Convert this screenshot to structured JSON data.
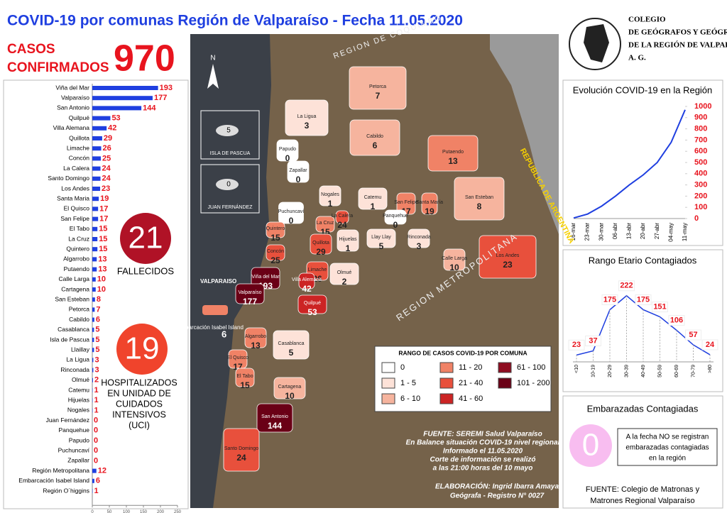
{
  "header": {
    "title": "COVID-19 por comunas Región de Valparaíso - Fecha 11.05.2020",
    "cases_label_1": "CASOS",
    "cases_label_2": "CONFIRMADOS",
    "cases_total": "970"
  },
  "logo": {
    "lines": [
      "COLEGIO",
      "DE GEÓGRAFOS Y GEÓGRAFAS",
      "DE LA REGIÓN DE VALPARAÍSO",
      "A. G."
    ]
  },
  "deaths": {
    "value": "21",
    "label": "FALLECIDOS"
  },
  "icu": {
    "value": "19",
    "lines": [
      "HOSPITALIZADOS",
      "EN UNIDAD DE",
      "CUIDADOS",
      "INTENSIVOS",
      "(UCI)"
    ]
  },
  "pregnant": {
    "title": "Embarazadas Contagiadas",
    "value": "0",
    "lines": [
      "A la fecha NO se registran",
      "embarazadas contagiadas",
      "en la región"
    ],
    "source": [
      "FUENTE: Colegio de Matronas y",
      "Matrones Regional Valparaíso"
    ]
  },
  "chart_data": [
    {
      "type": "bar",
      "orientation": "horizontal",
      "color": "#1f3fe0",
      "label_color": "#e8141e",
      "categories": [
        "Viña del Mar",
        "Valparaíso",
        "San Antonio",
        "Quilpué",
        "Villa Alemana",
        "Quillota",
        "Limache",
        "Concón",
        "La Calera",
        "Santo Domingo",
        "Los Andes",
        "Santa Maria",
        "El Quisco",
        "San Felipe",
        "El Tabo",
        "La Cruz",
        "Quintero",
        "Algarrobo",
        "Putaendo",
        "Calle Larga",
        "Cartagena",
        "San Esteban",
        "Petorca",
        "Cabildo",
        "Casablanca",
        "Isla de Pascua",
        "Llaillay",
        "La Ligua",
        "Rinconada",
        "Olmué",
        "Catemu",
        "Hijuelas",
        "Nogales",
        "Juan Fernández",
        "Panquehue",
        "Papudo",
        "Puchuncaví",
        "Zapallar",
        "Región Metropolitana",
        "Embarcación Isabel Island",
        "Región O´higgins"
      ],
      "values": [
        193,
        177,
        144,
        53,
        42,
        29,
        26,
        25,
        24,
        24,
        23,
        19,
        17,
        17,
        15,
        15,
        15,
        13,
        13,
        10,
        10,
        8,
        7,
        6,
        5,
        5,
        5,
        3,
        3,
        2,
        1,
        1,
        1,
        0,
        0,
        0,
        0,
        0,
        12,
        6,
        1
      ],
      "xlim": [
        0,
        250
      ],
      "xticks": [
        0,
        50,
        100,
        150,
        200,
        250
      ]
    },
    {
      "type": "line",
      "title": "Evolución COVID-19 en la Región",
      "color": "#1f3fe0",
      "categories": [
        "16-mar",
        "23-mar",
        "30-mar",
        "06-abr",
        "13-abr",
        "20-abr",
        "27-abr",
        "04-may",
        "11-may"
      ],
      "values": [
        5,
        40,
        110,
        200,
        300,
        390,
        500,
        680,
        970
      ],
      "ylim": [
        0,
        1000
      ],
      "yticks": [
        0,
        100,
        200,
        300,
        400,
        500,
        600,
        700,
        800,
        900,
        1000
      ],
      "y_axis_side": "right"
    },
    {
      "type": "line",
      "title": "Rango Etario Contagiados",
      "color": "#1f3fe0",
      "label_color": "#e8141e",
      "categories": [
        "<10",
        "10-19",
        "20-29",
        "30-39",
        "40-49",
        "50-59",
        "60-69",
        "70-79",
        ">80"
      ],
      "values": [
        23,
        37,
        175,
        222,
        175,
        151,
        106,
        57,
        24
      ],
      "ylim": [
        0,
        250
      ]
    }
  ],
  "map": {
    "north": "N",
    "legend_title": "RANGO DE CASOS COVID-19 POR COMUNA",
    "legend": [
      {
        "label": "0",
        "color": "#ffffff"
      },
      {
        "label": "1 - 5",
        "color": "#fde2d8"
      },
      {
        "label": "6 - 10",
        "color": "#f6b49e"
      },
      {
        "label": "11 - 20",
        "color": "#f08266"
      },
      {
        "label": "21 - 40",
        "color": "#e8503c"
      },
      {
        "label": "41 - 60",
        "color": "#cc2424"
      },
      {
        "label": "61 - 100",
        "color": "#8e0c20"
      },
      {
        "label": "101 - 200",
        "color": "#6a0016"
      }
    ],
    "comunas": [
      {
        "name": "Petorca",
        "value": "7"
      },
      {
        "name": "La Ligua",
        "value": "3"
      },
      {
        "name": "Cabildo",
        "value": "6"
      },
      {
        "name": "Putaendo",
        "value": "13"
      },
      {
        "name": "Papudo",
        "value": "0"
      },
      {
        "name": "Zapallar",
        "value": "0"
      },
      {
        "name": "Nogales",
        "value": "1"
      },
      {
        "name": "Catemu",
        "value": "1"
      },
      {
        "name": "San Felipe",
        "value": "17"
      },
      {
        "name": "Santa María",
        "value": "19"
      },
      {
        "name": "San Esteban",
        "value": "8"
      },
      {
        "name": "Puchuncaví",
        "value": "0"
      },
      {
        "name": "La Cruz",
        "value": "15"
      },
      {
        "name": "La Calera",
        "value": "24"
      },
      {
        "name": "Panquehue",
        "value": "0"
      },
      {
        "name": "Hijuelas",
        "value": "1"
      },
      {
        "name": "Llay Llay",
        "value": "5"
      },
      {
        "name": "Rinconada",
        "value": "3"
      },
      {
        "name": "Calle Larga",
        "value": "10"
      },
      {
        "name": "Los Andes",
        "value": "23"
      },
      {
        "name": "Quintero",
        "value": "15"
      },
      {
        "name": "Quillota",
        "value": "29"
      },
      {
        "name": "Concón",
        "value": "25"
      },
      {
        "name": "Limache",
        "value": "26"
      },
      {
        "name": "Olmué",
        "value": "2"
      },
      {
        "name": "Villa Alemana",
        "value": "42"
      },
      {
        "name": "Viña del Mar",
        "value": "193"
      },
      {
        "name": "Valparaíso",
        "value": "177"
      },
      {
        "name": "Quilpué",
        "value": "53"
      },
      {
        "name": "Algarrobo",
        "value": "13"
      },
      {
        "name": "Casablanca",
        "value": "5"
      },
      {
        "name": "El Quisco",
        "value": "17"
      },
      {
        "name": "El Tabo",
        "value": "15"
      },
      {
        "name": "Cartagena",
        "value": "10"
      },
      {
        "name": "San Antonio",
        "value": "144"
      },
      {
        "name": "Santo Domingo",
        "value": "24"
      }
    ],
    "insets": [
      {
        "name": "ISLA DE PASCUA",
        "value": "5"
      },
      {
        "name": "JUAN FERNÁNDEZ",
        "value": "0"
      }
    ],
    "ship": {
      "name": "Embarcación Isabel Island",
      "value": "6"
    },
    "places": [
      "VALPARAISO",
      "REGION METROPOLITANA",
      "REPUBLICA DE ARGENTINA",
      "REGION DE COQUIMBO"
    ],
    "source": [
      "FUENTE: SEREMI Salud Valparaíso",
      "En Balance situación COVID-19 nivel regional",
      "Informado el 11.05.2020",
      "Corte de información se realizó",
      "a las 21:00 horas del 10  mayo"
    ],
    "credits": [
      "ELABORACIÓN: Ingrid Ibarra Amaya",
      "Geógrafa - Registro N° 0027"
    ]
  }
}
